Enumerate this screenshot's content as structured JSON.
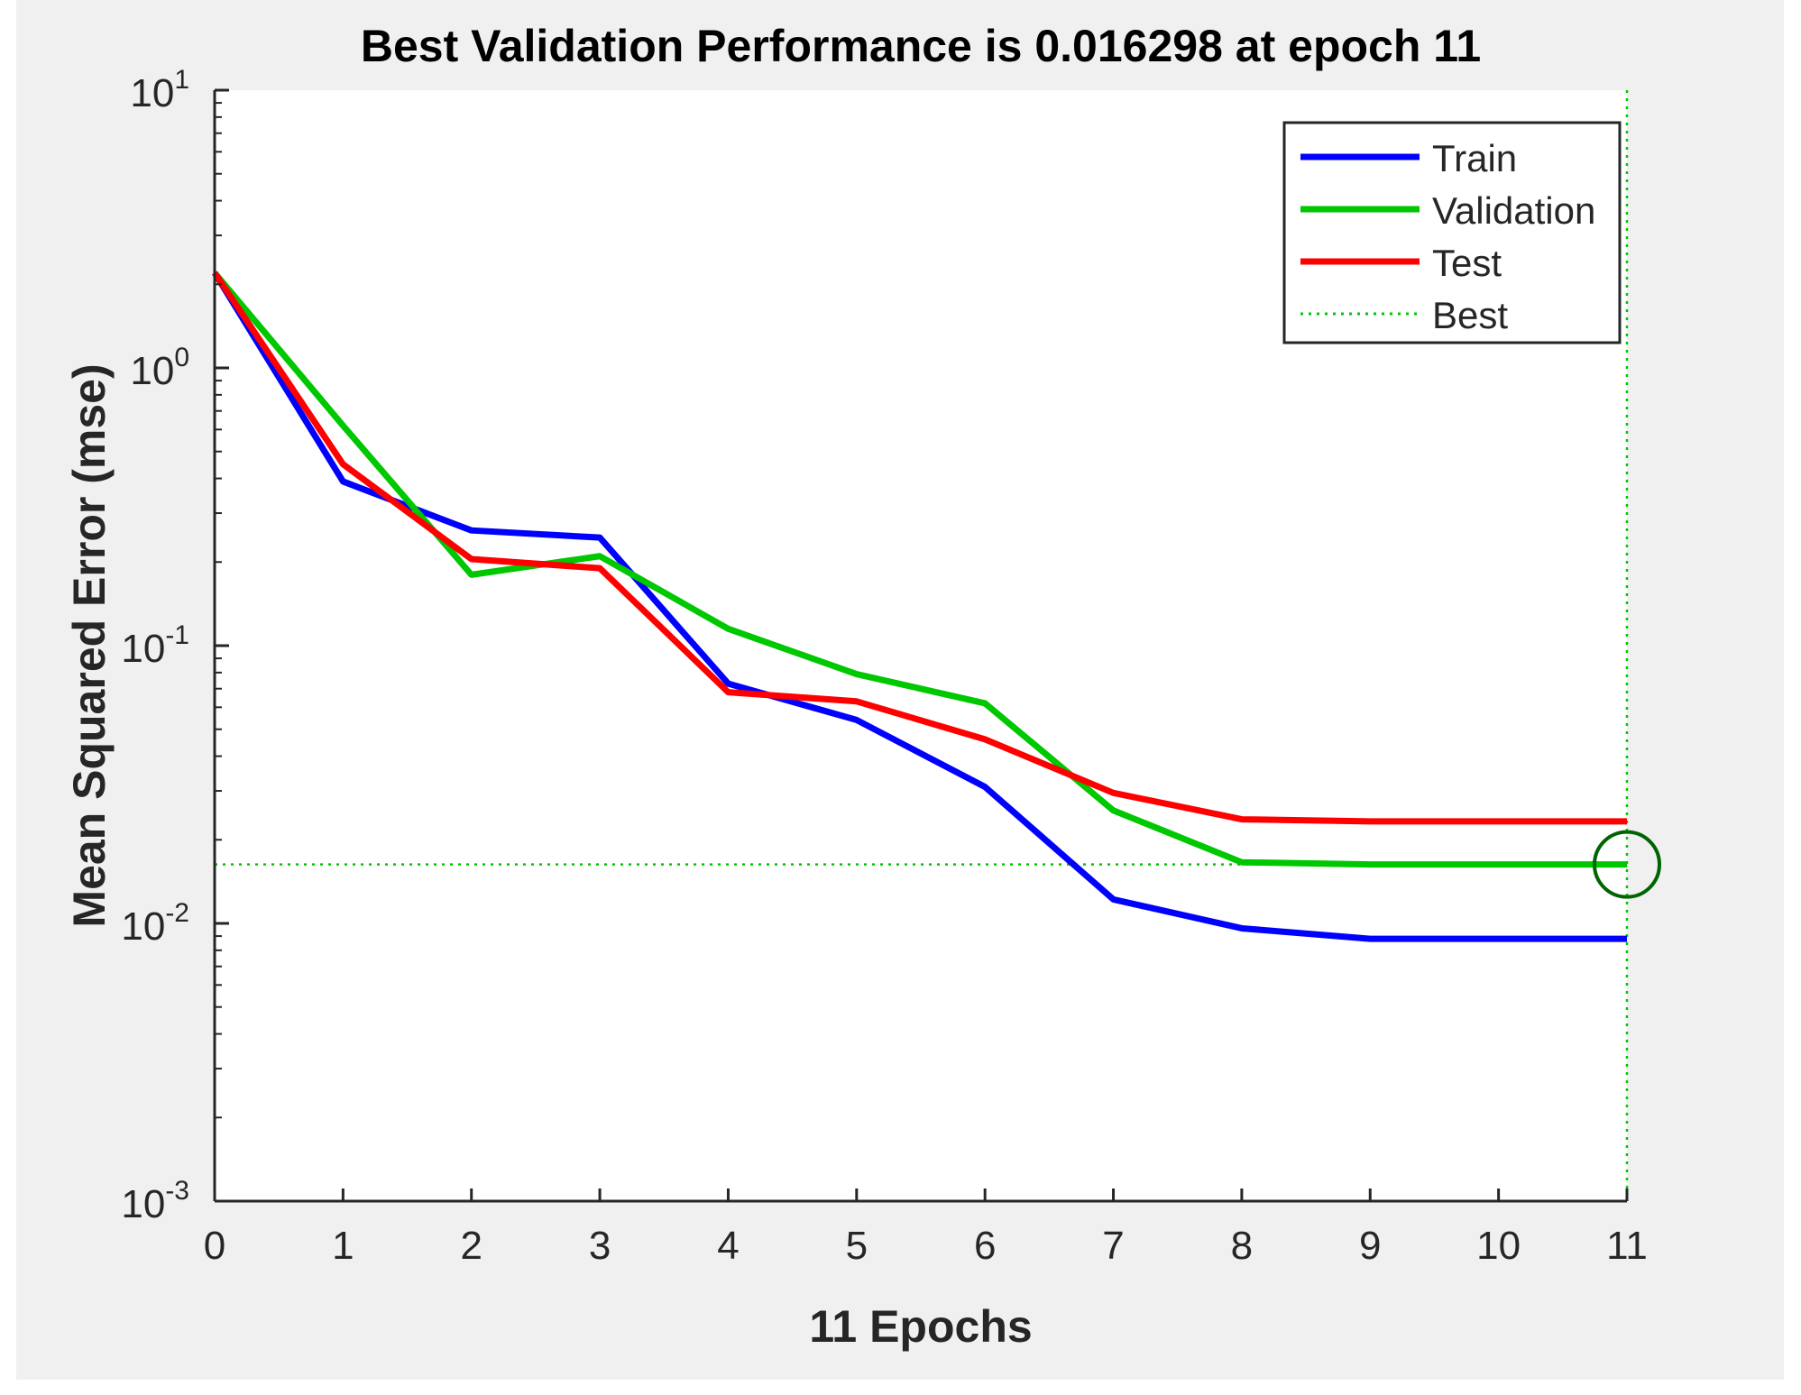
{
  "chart_data": {
    "type": "line",
    "title": "Best Validation Performance is 0.016298 at epoch 11",
    "xlabel": "11 Epochs",
    "ylabel": "Mean Squared Error  (mse)",
    "yscale": "log",
    "xlim": [
      0,
      11
    ],
    "ylim": [
      0.001,
      10
    ],
    "x": [
      0,
      1,
      2,
      3,
      4,
      5,
      6,
      7,
      8,
      9,
      10,
      11
    ],
    "x_tick_labels": [
      "0",
      "1",
      "2",
      "3",
      "4",
      "5",
      "6",
      "7",
      "8",
      "9",
      "10",
      "11"
    ],
    "y_ticks": [
      {
        "value": 10,
        "base": "10",
        "exp": "1"
      },
      {
        "value": 1,
        "base": "10",
        "exp": "0"
      },
      {
        "value": 0.1,
        "base": "10",
        "exp": "-1"
      },
      {
        "value": 0.01,
        "base": "10",
        "exp": "-2"
      },
      {
        "value": 0.001,
        "base": "10",
        "exp": "-3"
      }
    ],
    "series": [
      {
        "name": "Train",
        "color": "#0000ff",
        "values": [
          2.2,
          0.39,
          0.26,
          0.245,
          0.073,
          0.054,
          0.031,
          0.0122,
          0.0096,
          0.0088,
          0.0088,
          0.0088
        ]
      },
      {
        "name": "Validation",
        "color": "#00c800",
        "values": [
          2.2,
          0.62,
          0.18,
          0.21,
          0.115,
          0.079,
          0.062,
          0.0255,
          0.0166,
          0.0163,
          0.0163,
          0.016298
        ]
      },
      {
        "name": "Test",
        "color": "#ff0000",
        "values": [
          2.2,
          0.45,
          0.205,
          0.19,
          0.068,
          0.063,
          0.046,
          0.0295,
          0.0237,
          0.0233,
          0.0233,
          0.0233
        ]
      }
    ],
    "best": {
      "name": "Best",
      "epoch": 11,
      "value": 0.016298,
      "color": "#00c800",
      "marker_color": "#006400"
    },
    "legend": {
      "position": "top-right",
      "entries": [
        "Train",
        "Validation",
        "Test",
        "Best"
      ]
    },
    "grid": false
  }
}
